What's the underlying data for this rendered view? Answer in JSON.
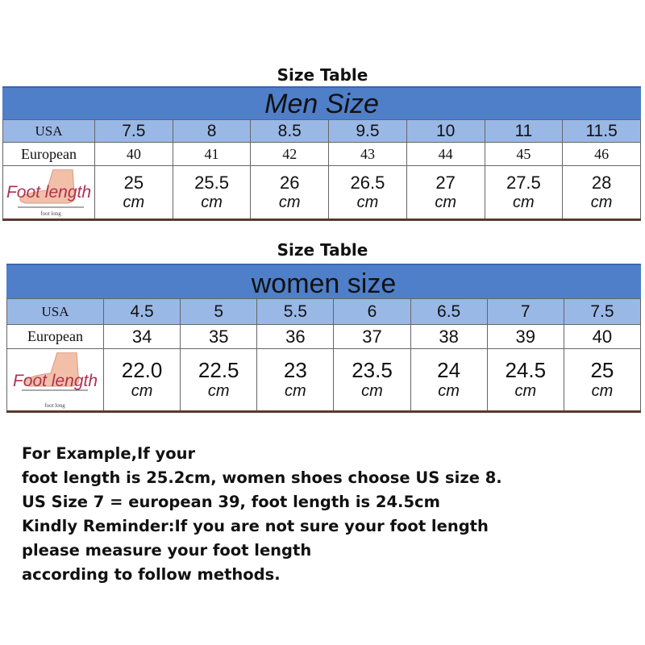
{
  "men": {
    "title": "Size Table",
    "header": "Men Size",
    "row_labels": {
      "usa": "USA",
      "european": "European",
      "foot": "Foot length"
    },
    "foot_image_caption": "foot long",
    "usa": [
      "7.5",
      "8",
      "8.5",
      "9.5",
      "10",
      "11",
      "11.5"
    ],
    "european": [
      "40",
      "41",
      "42",
      "43",
      "44",
      "45",
      "46"
    ],
    "foot_length": [
      "25",
      "25.5",
      "26",
      "26.5",
      "27",
      "27.5",
      "28"
    ],
    "unit": "cm"
  },
  "women": {
    "title": "Size Table",
    "header": "women size",
    "row_labels": {
      "usa": "USA",
      "european": "European",
      "foot": "Foot length"
    },
    "foot_image_caption": "foot long",
    "usa": [
      "4.5",
      "5",
      "5.5",
      "6",
      "6.5",
      "7",
      "7.5"
    ],
    "european": [
      "34",
      "35",
      "36",
      "37",
      "38",
      "39",
      "40"
    ],
    "foot_length": [
      "22.0",
      "22.5",
      "23",
      "23.5",
      "24",
      "24.5",
      "25"
    ],
    "unit": "cm"
  },
  "note": {
    "lines": [
      "For Example,If your",
      "foot length is 25.2cm, women shoes choose US size 8.",
      "US Size 7 = european 39, foot length is 24.5cm",
      "Kindly Reminder:If you are not sure your foot length",
      "please measure your foot length",
      "according to follow methods."
    ]
  },
  "colors": {
    "header": "#4f7fc8",
    "usa_row": "#9ab8e6",
    "foot_label": "#b03050"
  }
}
